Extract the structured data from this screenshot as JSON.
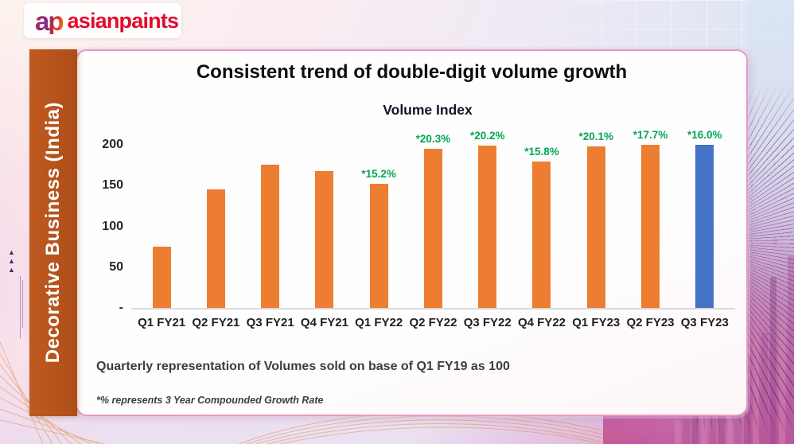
{
  "logo": {
    "mark": "ap",
    "name": "asianpaints"
  },
  "sidebar": {
    "label": "Decorative Business (India)"
  },
  "slide": {
    "title": "Consistent trend of double-digit volume growth",
    "caption": "Quarterly representation of Volumes sold on base of Q1 FY19 as 100",
    "footnote": "*% represents 3 Year Compounded Growth Rate"
  },
  "chart_data": {
    "type": "bar",
    "title": "Volume Index",
    "categories": [
      "Q1 FY21",
      "Q2 FY21",
      "Q3 FY21",
      "Q4 FY21",
      "Q1 FY22",
      "Q2 FY22",
      "Q3 FY22",
      "Q4 FY22",
      "Q1 FY23",
      "Q2 FY23",
      "Q3 FY23"
    ],
    "values": [
      75,
      146,
      176,
      168,
      152,
      195,
      199,
      180,
      198,
      200,
      200
    ],
    "bar_labels": [
      "",
      "",
      "",
      "",
      "*15.2%",
      "*20.3%",
      "*20.2%",
      "*15.8%",
      "*20.1%",
      "*17.7%",
      "*16.0%"
    ],
    "y_ticks": [
      {
        "label": "200",
        "value": 200
      },
      {
        "label": "150",
        "value": 150
      },
      {
        "label": "100",
        "value": 100
      },
      {
        "label": "50",
        "value": 50
      },
      {
        "label": "-",
        "value": 0
      }
    ],
    "ylim": [
      0,
      210
    ],
    "xlabel": "",
    "ylabel": "",
    "grid": false,
    "legend": "none",
    "highlight_index": 10,
    "colors": {
      "bar": "#ED7D31",
      "highlight": "#4472C4",
      "bar_label": "#00A651"
    }
  },
  "decor": {
    "skyline_heights": [
      30,
      70,
      45,
      95,
      60,
      120,
      85,
      150,
      110,
      180,
      140,
      210,
      170,
      236
    ],
    "edge_triangles": [
      "▲",
      "▲",
      "▲"
    ]
  }
}
